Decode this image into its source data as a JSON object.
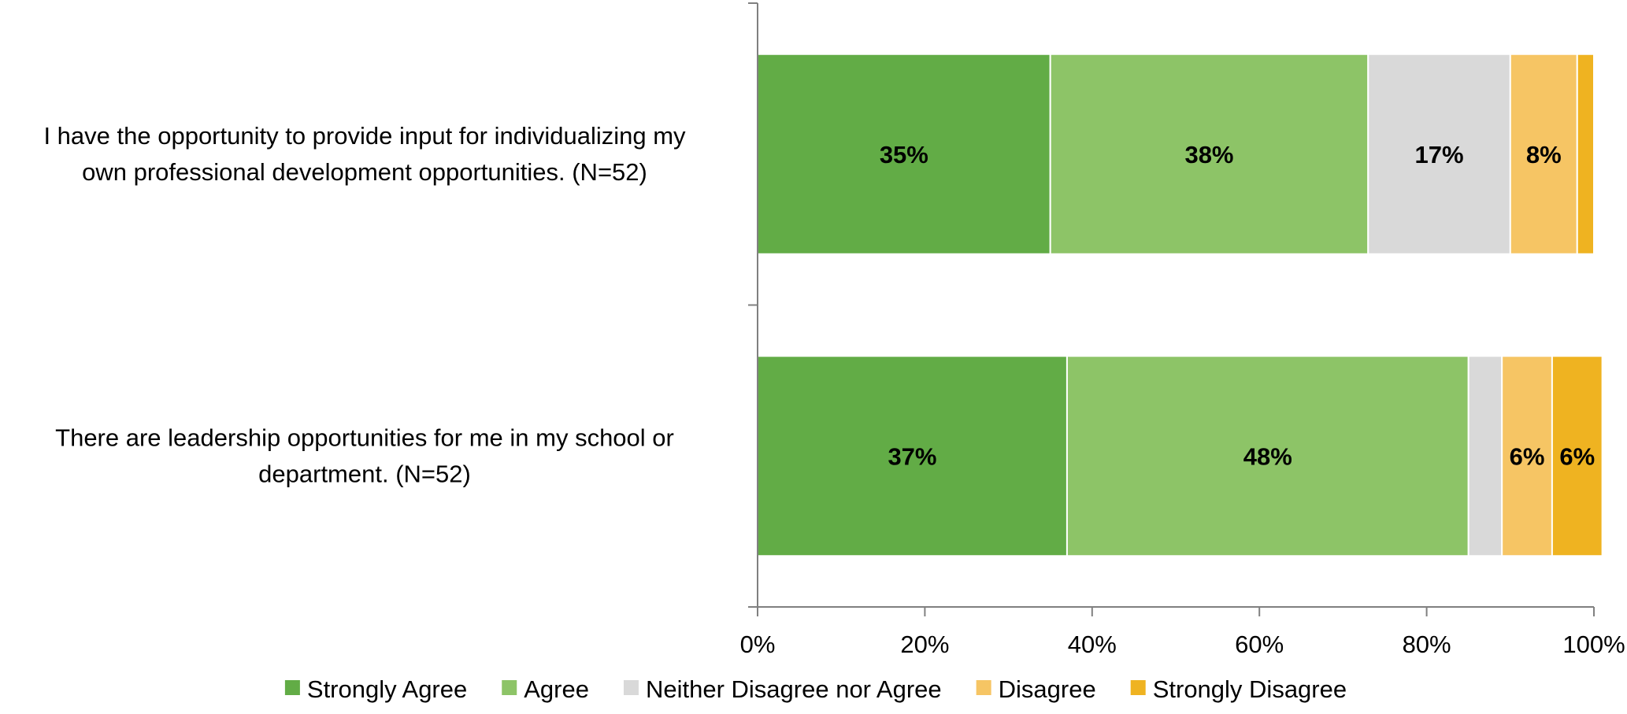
{
  "chart_data": {
    "type": "bar",
    "orientation": "horizontal",
    "stacked": true,
    "title": "",
    "xlabel": "",
    "ylabel": "",
    "xlim": [
      0,
      100
    ],
    "x_ticks": [
      "0%",
      "20%",
      "40%",
      "60%",
      "80%",
      "100%"
    ],
    "x_tick_values": [
      0,
      20,
      40,
      60,
      80,
      100
    ],
    "grid": false,
    "legend_position": "bottom",
    "categories": [
      [
        "I have the opportunity to provide input for individualizing my",
        "own professional development opportunities. (N=52)"
      ],
      [
        "There are leadership opportunities for me in my school or",
        "department. (N=52)"
      ]
    ],
    "series": [
      {
        "name": "Strongly Agree",
        "color": "#62AC46",
        "values": [
          35,
          37
        ],
        "labels": [
          "35%",
          "37%"
        ]
      },
      {
        "name": "Agree",
        "color": "#8DC467",
        "values": [
          38,
          48
        ],
        "labels": [
          "38%",
          "48%"
        ]
      },
      {
        "name": "Neither Disagree nor Agree",
        "color": "#D9D9D9",
        "values": [
          17,
          4
        ],
        "labels": [
          "17%",
          ""
        ]
      },
      {
        "name": "Disagree",
        "color": "#F6C564",
        "values": [
          8,
          6
        ],
        "labels": [
          "8%",
          "6%"
        ]
      },
      {
        "name": "Strongly Disagree",
        "color": "#EFB321",
        "values": [
          2,
          6
        ],
        "labels": [
          "",
          "6%"
        ]
      }
    ]
  }
}
